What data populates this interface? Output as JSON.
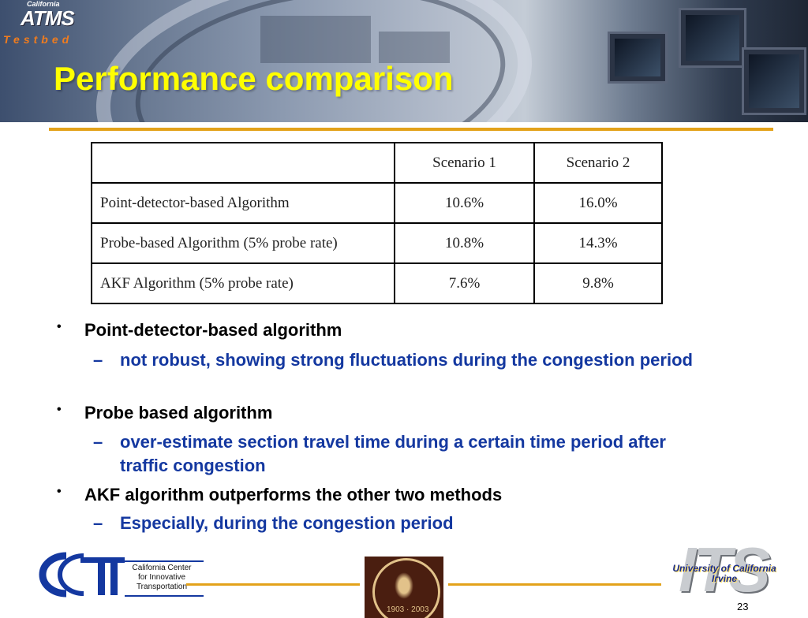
{
  "header": {
    "logo": {
      "top_text": "California",
      "main_text": "ATMS",
      "sub_text": "Testbed"
    },
    "title": "Performance comparison"
  },
  "table": {
    "header": [
      "",
      "Scenario 1",
      "Scenario 2"
    ],
    "rows": [
      [
        "Point-detector-based Algorithm",
        "10.6%",
        "16.0%"
      ],
      [
        "Probe-based Algorithm (5% probe rate)",
        "10.8%",
        "14.3%"
      ],
      [
        "AKF Algorithm (5% probe rate)",
        "7.6%",
        "9.8%"
      ]
    ]
  },
  "bullets": [
    {
      "text": "Point-detector-based algorithm",
      "sub": "not robust, showing strong fluctuations during the congestion period"
    },
    {
      "text": "Probe based algorithm",
      "sub": "over-estimate section travel time during a certain time period after traffic congestion"
    },
    {
      "text": "AKF algorithm outperforms the other two methods",
      "sub": "Especially, during the congestion period"
    }
  ],
  "footer": {
    "ccit_lines": [
      "California Center",
      "for Innovative",
      "Transportation"
    ],
    "seal_years": "1903 · 2003",
    "its_text": "ITS",
    "uc_text": [
      "University of California",
      "Irvine"
    ],
    "page_number": "23"
  },
  "colors": {
    "title": "#ffff00",
    "accent_rule": "#e3a21a",
    "sub_bullet": "#1438a0"
  }
}
